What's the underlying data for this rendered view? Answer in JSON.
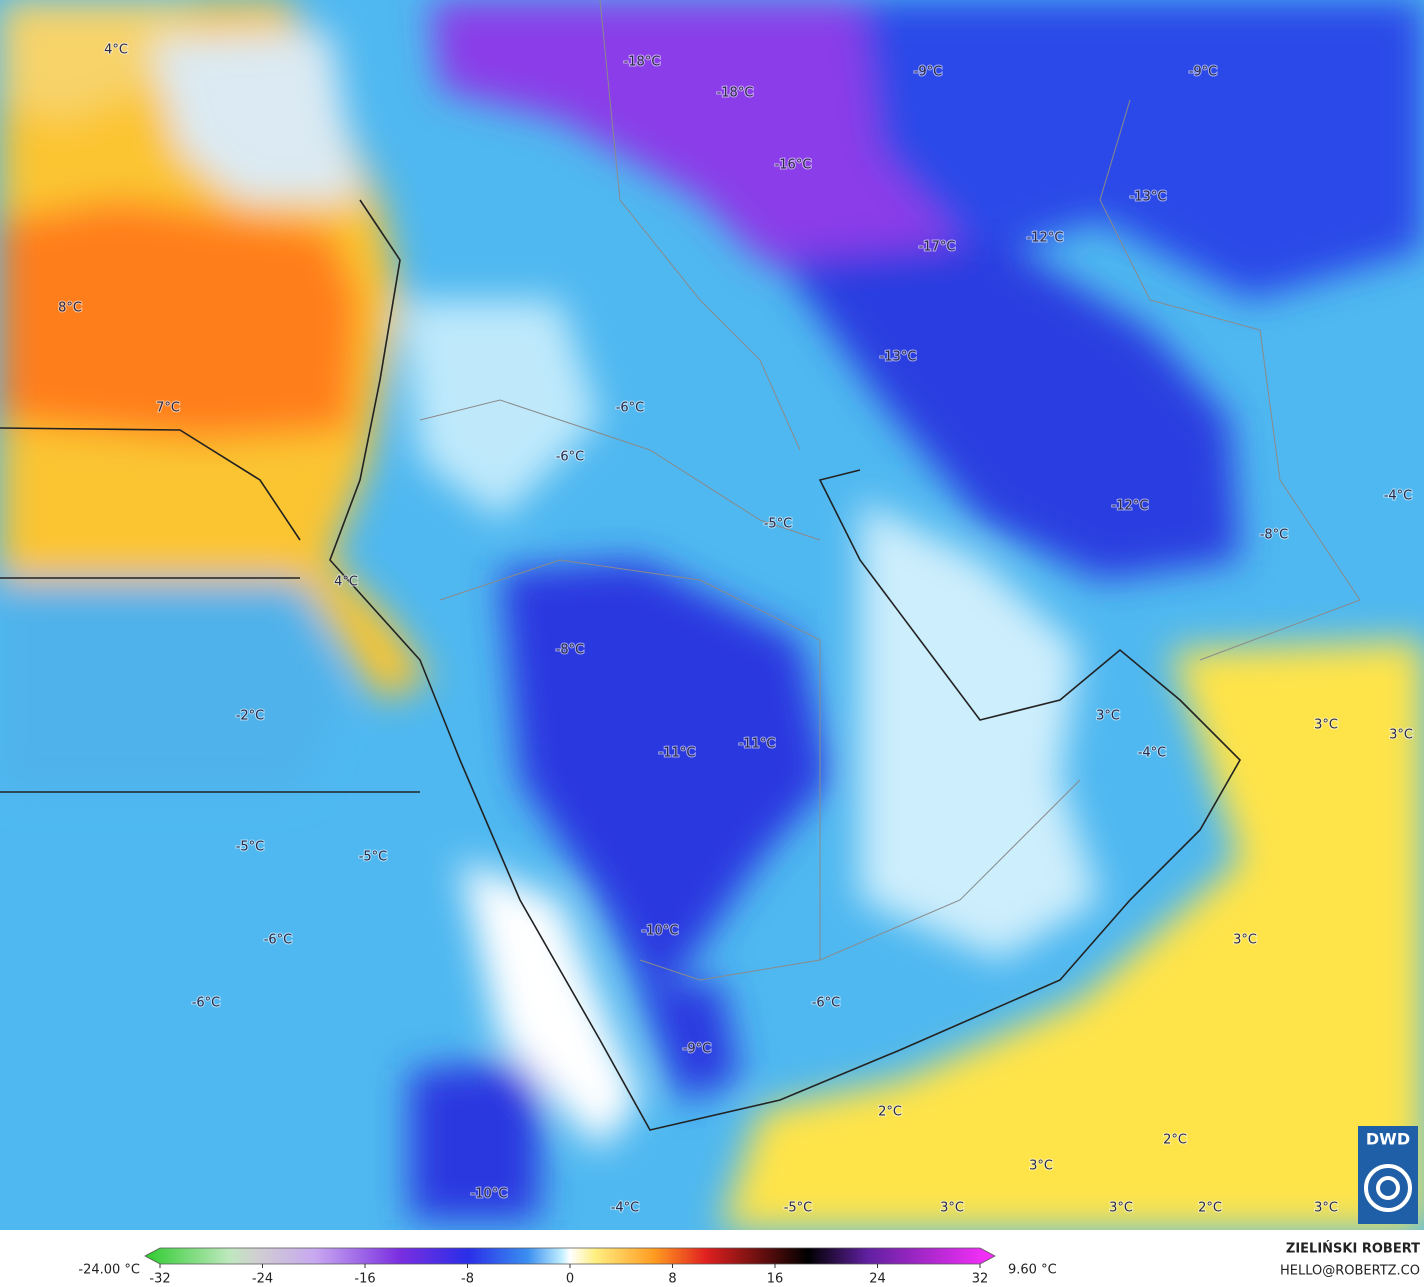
{
  "map": {
    "labels": [
      "4°C",
      "-18°C",
      "-18°C",
      "-9°C",
      "-9°C",
      "-16°C",
      "-13°C",
      "-17°C",
      "-12°C",
      "8°C",
      "-13°C",
      "7°C",
      "-6°C",
      "-6°C",
      "-5°C",
      "-12°C",
      "-4°C",
      "-8°C",
      "4°C",
      "-8°C",
      "-2°C",
      "3°C",
      "3°C",
      "3°C",
      "-4°C",
      "-11°C",
      "-11°C",
      "-5°C",
      "-5°C",
      "-6°C",
      "-10°C",
      "3°C",
      "-6°C",
      "-6°C",
      "-9°C",
      "2°C",
      "2°C",
      "3°C",
      "-10°C",
      "-4°C",
      "-5°C",
      "3°C",
      "3°C",
      "2°C",
      "3°C"
    ],
    "logo": "DWD"
  },
  "colorbar": {
    "min_label": "-24.00 °C",
    "max_label": "9.60 °C",
    "ticks": [
      -32,
      -24,
      -16,
      -8,
      0,
      8,
      16,
      24,
      32
    ]
  },
  "credit": {
    "author": "ZIELIŃSKI ROBERT",
    "contact": "HELLO@ROBERTZ.CO"
  }
}
